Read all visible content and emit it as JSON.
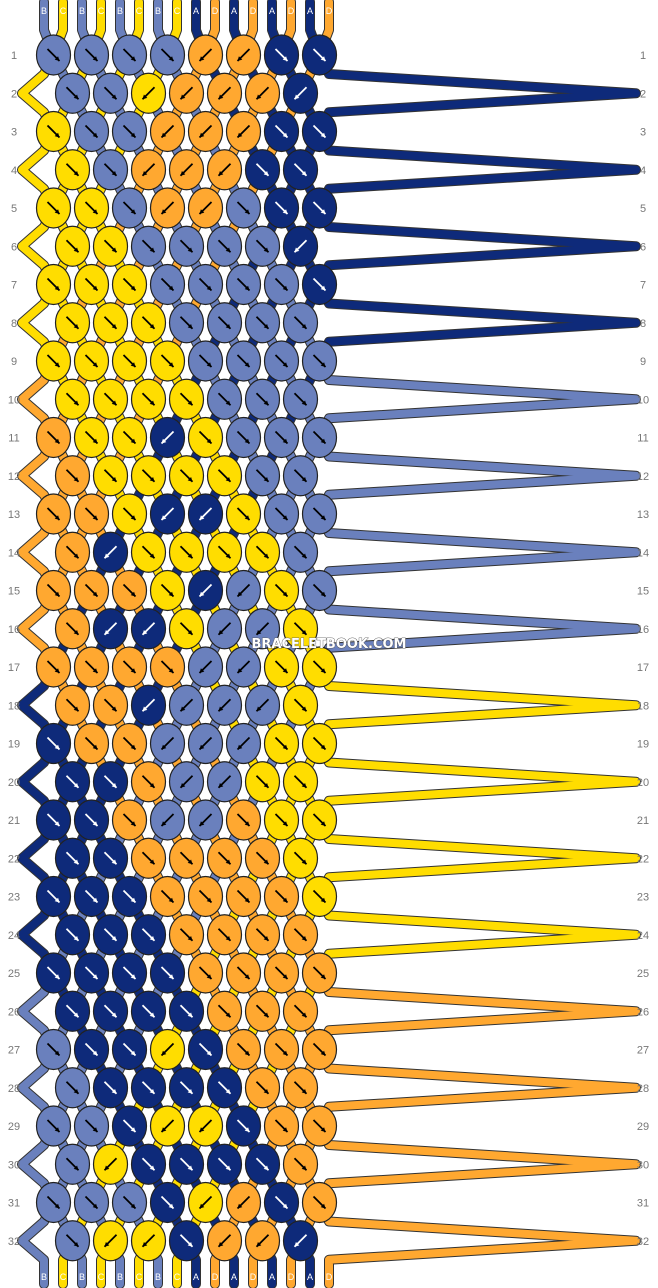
{
  "watermark": "BRACELETBOOK.COM",
  "colors": {
    "A": "#0e2a7a",
    "B": "#6a80bd",
    "C": "#ffdd00",
    "D": "#ffa830"
  },
  "strands_top": [
    "B",
    "C",
    "B",
    "C",
    "B",
    "C",
    "B",
    "C",
    "A",
    "D",
    "A",
    "D",
    "A",
    "D",
    "A",
    "D"
  ],
  "strands_bottom": [
    "B",
    "C",
    "B",
    "C",
    "B",
    "C",
    "B",
    "C",
    "A",
    "D",
    "A",
    "D",
    "A",
    "D",
    "A",
    "D"
  ],
  "rows": [
    [
      "B1",
      "B1",
      "B1",
      "B1",
      "D2",
      "D2",
      "A1",
      "A1"
    ],
    [
      "B1",
      "B1",
      "C2",
      "D2",
      "D2",
      "D2",
      "A2"
    ],
    [
      "C1",
      "B1",
      "B1",
      "D2",
      "D2",
      "D2",
      "A1",
      "A1"
    ],
    [
      "C1",
      "B1",
      "D2",
      "D2",
      "D2",
      "A1",
      "A1"
    ],
    [
      "C1",
      "C1",
      "B1",
      "D2",
      "D2",
      "B1",
      "A1",
      "A1"
    ],
    [
      "C1",
      "C1",
      "B1",
      "B1",
      "B1",
      "B1",
      "A2"
    ],
    [
      "C1",
      "C1",
      "C1",
      "B1",
      "B1",
      "B1",
      "B1",
      "A1"
    ],
    [
      "C1",
      "C1",
      "C1",
      "B1",
      "B1",
      "B1",
      "B1"
    ],
    [
      "C1",
      "C1",
      "C1",
      "C1",
      "B1",
      "B1",
      "B1",
      "B1"
    ],
    [
      "C1",
      "C1",
      "C1",
      "C1",
      "B1",
      "B1",
      "B1"
    ],
    [
      "D1",
      "C1",
      "C1",
      "A2",
      "C1",
      "B1",
      "B1",
      "B1"
    ],
    [
      "D1",
      "C1",
      "C1",
      "C1",
      "C1",
      "B1",
      "B1"
    ],
    [
      "D1",
      "D1",
      "C1",
      "A2",
      "A2",
      "C1",
      "B1",
      "B1"
    ],
    [
      "D1",
      "A2",
      "C1",
      "C1",
      "C1",
      "C1",
      "B1"
    ],
    [
      "D1",
      "D1",
      "D1",
      "C1",
      "A2",
      "B2",
      "C1",
      "B1"
    ],
    [
      "D1",
      "A2",
      "A2",
      "C1",
      "B2",
      "B2",
      "C1"
    ],
    [
      "D1",
      "D1",
      "D1",
      "D1",
      "B2",
      "B2",
      "C1",
      "C1"
    ],
    [
      "D1",
      "D1",
      "A2",
      "B2",
      "B2",
      "B2",
      "C1"
    ],
    [
      "A1",
      "D1",
      "D1",
      "B2",
      "B2",
      "B2",
      "C1",
      "C1"
    ],
    [
      "A1",
      "A1",
      "D1",
      "B2",
      "B2",
      "C1",
      "C1"
    ],
    [
      "A1",
      "A1",
      "D1",
      "B2",
      "B2",
      "D1",
      "C1",
      "C1"
    ],
    [
      "A1",
      "A1",
      "D1",
      "D1",
      "D1",
      "D1",
      "C1"
    ],
    [
      "A1",
      "A1",
      "A1",
      "D1",
      "D1",
      "D1",
      "D1",
      "C1"
    ],
    [
      "A1",
      "A1",
      "A1",
      "D1",
      "D1",
      "D1",
      "D1"
    ],
    [
      "A1",
      "A1",
      "A1",
      "A1",
      "D1",
      "D1",
      "D1",
      "D1"
    ],
    [
      "A1",
      "A1",
      "A1",
      "A1",
      "D1",
      "D1",
      "D1"
    ],
    [
      "B1",
      "A1",
      "A1",
      "C2",
      "A1",
      "D1",
      "D1",
      "D1"
    ],
    [
      "B1",
      "A1",
      "A1",
      "A1",
      "A1",
      "D1",
      "D1"
    ],
    [
      "B1",
      "B1",
      "A1",
      "C2",
      "C2",
      "A1",
      "D1",
      "D1"
    ],
    [
      "B1",
      "C2",
      "A1",
      "A1",
      "A1",
      "A1",
      "D1"
    ],
    [
      "B1",
      "B1",
      "B1",
      "A1",
      "C2",
      "D2",
      "A1",
      "D1"
    ],
    [
      "B1",
      "C2",
      "C2",
      "A1",
      "D2",
      "D2",
      "A2"
    ]
  ]
}
